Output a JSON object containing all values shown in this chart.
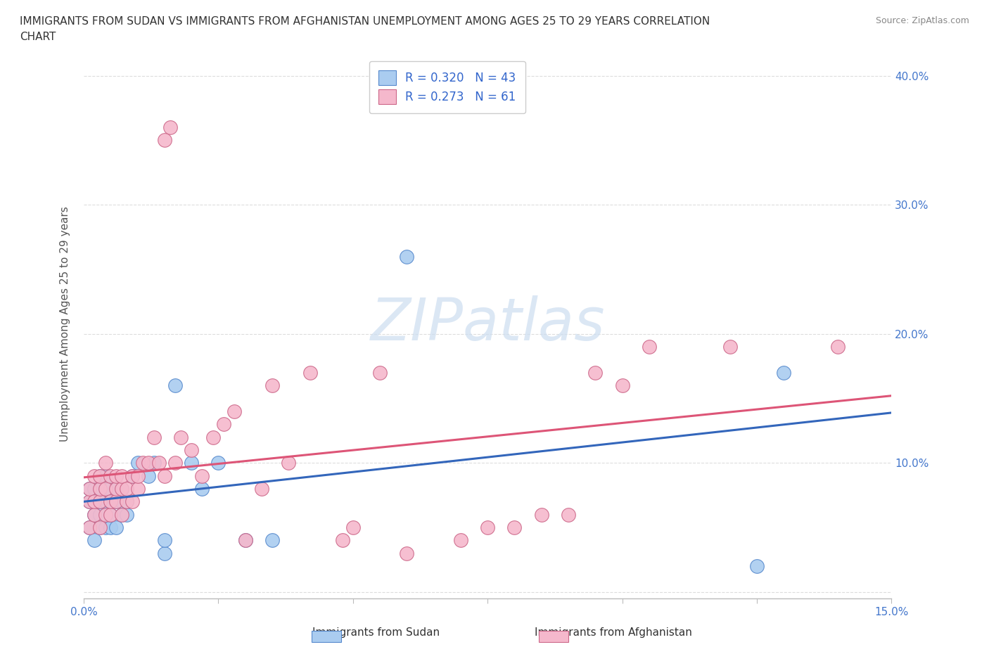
{
  "title_line1": "IMMIGRANTS FROM SUDAN VS IMMIGRANTS FROM AFGHANISTAN UNEMPLOYMENT AMONG AGES 25 TO 29 YEARS CORRELATION",
  "title_line2": "CHART",
  "source": "Source: ZipAtlas.com",
  "ylabel": "Unemployment Among Ages 25 to 29 years",
  "xlim": [
    0.0,
    0.15
  ],
  "ylim": [
    -0.005,
    0.42
  ],
  "series1_name": "Immigrants from Sudan",
  "series1_R": "0.320",
  "series1_N": "43",
  "series1_color": "#aaccf0",
  "series1_edge_color": "#5588cc",
  "series1_line_color": "#3366bb",
  "series2_name": "Immigrants from Afghanistan",
  "series2_R": "0.273",
  "series2_N": "61",
  "series2_color": "#f5b8cc",
  "series2_edge_color": "#cc6688",
  "series2_line_color": "#dd5577",
  "background_color": "#ffffff",
  "grid_color": "#dddddd",
  "watermark_text": "ZIPatlas",
  "watermark_color": "#ccddf0",
  "sudan_x": [
    0.001,
    0.001,
    0.001,
    0.002,
    0.002,
    0.002,
    0.002,
    0.003,
    0.003,
    0.003,
    0.003,
    0.003,
    0.004,
    0.004,
    0.004,
    0.004,
    0.005,
    0.005,
    0.005,
    0.005,
    0.006,
    0.006,
    0.006,
    0.007,
    0.007,
    0.007,
    0.008,
    0.008,
    0.009,
    0.01,
    0.012,
    0.013,
    0.015,
    0.015,
    0.017,
    0.02,
    0.022,
    0.025,
    0.03,
    0.035,
    0.06,
    0.125,
    0.13
  ],
  "sudan_y": [
    0.05,
    0.07,
    0.08,
    0.04,
    0.06,
    0.07,
    0.08,
    0.05,
    0.06,
    0.07,
    0.08,
    0.09,
    0.05,
    0.07,
    0.08,
    0.09,
    0.05,
    0.06,
    0.07,
    0.08,
    0.05,
    0.07,
    0.08,
    0.06,
    0.07,
    0.08,
    0.06,
    0.07,
    0.09,
    0.1,
    0.09,
    0.1,
    0.03,
    0.04,
    0.16,
    0.1,
    0.08,
    0.1,
    0.04,
    0.04,
    0.26,
    0.02,
    0.17
  ],
  "afghan_x": [
    0.001,
    0.001,
    0.001,
    0.002,
    0.002,
    0.002,
    0.003,
    0.003,
    0.003,
    0.003,
    0.004,
    0.004,
    0.004,
    0.005,
    0.005,
    0.005,
    0.006,
    0.006,
    0.006,
    0.007,
    0.007,
    0.007,
    0.008,
    0.008,
    0.009,
    0.009,
    0.01,
    0.01,
    0.011,
    0.012,
    0.013,
    0.014,
    0.015,
    0.015,
    0.016,
    0.017,
    0.018,
    0.02,
    0.022,
    0.024,
    0.026,
    0.028,
    0.03,
    0.033,
    0.035,
    0.038,
    0.042,
    0.048,
    0.05,
    0.055,
    0.06,
    0.07,
    0.075,
    0.08,
    0.085,
    0.09,
    0.095,
    0.1,
    0.105,
    0.12,
    0.14
  ],
  "afghan_y": [
    0.05,
    0.07,
    0.08,
    0.06,
    0.07,
    0.09,
    0.05,
    0.07,
    0.08,
    0.09,
    0.06,
    0.08,
    0.1,
    0.06,
    0.07,
    0.09,
    0.07,
    0.08,
    0.09,
    0.06,
    0.08,
    0.09,
    0.07,
    0.08,
    0.07,
    0.09,
    0.08,
    0.09,
    0.1,
    0.1,
    0.12,
    0.1,
    0.09,
    0.35,
    0.36,
    0.1,
    0.12,
    0.11,
    0.09,
    0.12,
    0.13,
    0.14,
    0.04,
    0.08,
    0.16,
    0.1,
    0.17,
    0.04,
    0.05,
    0.17,
    0.03,
    0.04,
    0.05,
    0.05,
    0.06,
    0.06,
    0.17,
    0.16,
    0.19,
    0.19,
    0.19
  ]
}
